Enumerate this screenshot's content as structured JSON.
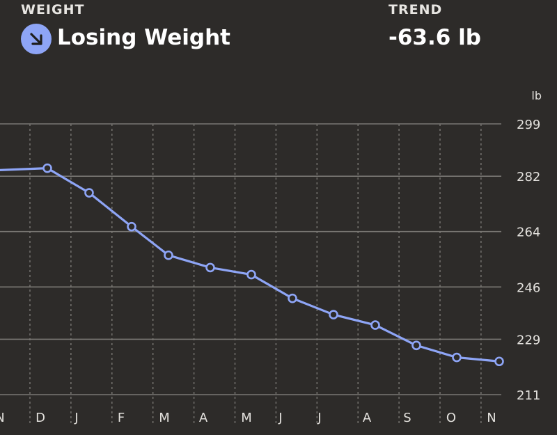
{
  "header": {
    "weight_label": "WEIGHT",
    "weight_status": "Losing Weight",
    "status_icon": "arrow-down-right-icon",
    "trend_label": "TREND",
    "trend_value": "-63.6 lb"
  },
  "colors": {
    "background": "#2d2b29",
    "accent": "#8ea5f6",
    "gridline": "#7a7874",
    "text": "#f2f0ec"
  },
  "chart_data": {
    "type": "line",
    "unit": "lb",
    "categories": [
      "N",
      "D",
      "J",
      "F",
      "M",
      "A",
      "M",
      "J",
      "J",
      "A",
      "S",
      "O",
      "N"
    ],
    "series": [
      {
        "values": [
          283.8,
          284.6,
          276.6,
          265.6,
          256.3,
          252.3,
          250.0,
          242.3,
          237.0,
          233.6,
          227.0,
          223.1,
          221.8
        ]
      }
    ],
    "yticks": [
      299,
      282,
      264,
      246,
      229,
      211
    ],
    "ylim": [
      211,
      299
    ],
    "grid": {
      "horizontal": "solid",
      "vertical": "dotted"
    }
  }
}
